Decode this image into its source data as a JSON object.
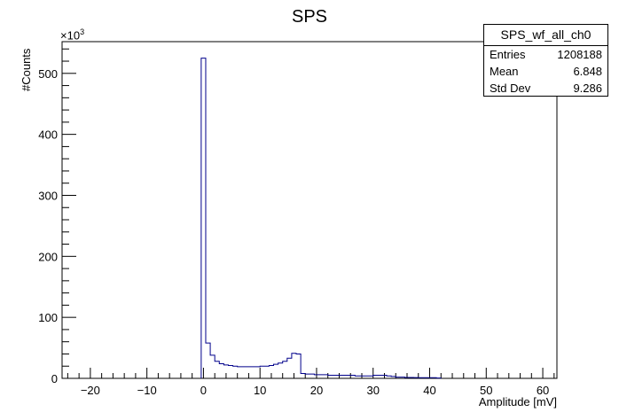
{
  "chart_data": {
    "type": "histogram",
    "title": "SPS",
    "xlabel": "Amplitude [mV]",
    "ylabel": "#Counts",
    "y_multiplier_label": "×10",
    "y_multiplier_exp": "3",
    "xlim": [
      -25,
      62.5
    ],
    "ylim": [
      0,
      552
    ],
    "xticks": [
      "-20",
      "-10",
      "0",
      "10",
      "20",
      "30",
      "40",
      "50",
      "60"
    ],
    "xtick_values": [
      -20,
      -10,
      0,
      10,
      20,
      30,
      40,
      50,
      60
    ],
    "yticks": [
      "0",
      "100",
      "200",
      "300",
      "400",
      "500"
    ],
    "ytick_values": [
      0,
      100,
      200,
      300,
      400,
      500
    ],
    "bin_width": 0.8,
    "bin_start": -0.4,
    "values": [
      525,
      58,
      38,
      28,
      24,
      22,
      21,
      20,
      19,
      19,
      19,
      19,
      19,
      20,
      20,
      21,
      23,
      25,
      28,
      33,
      41,
      40,
      8,
      7,
      7,
      6,
      6,
      6,
      5,
      5,
      5,
      5,
      5,
      5,
      4,
      4,
      4,
      4,
      5,
      5,
      5,
      4,
      3,
      2,
      2,
      1.5,
      1.5,
      1.2,
      1,
      1,
      1,
      1,
      0.5
    ],
    "line_color": "#00008b"
  },
  "stats_box": {
    "name": "SPS_wf_all_ch0",
    "rows": [
      {
        "label": "Entries",
        "value": "1208188"
      },
      {
        "label": "Mean",
        "value": "6.848"
      },
      {
        "label": "Std Dev",
        "value": "9.286"
      }
    ]
  }
}
